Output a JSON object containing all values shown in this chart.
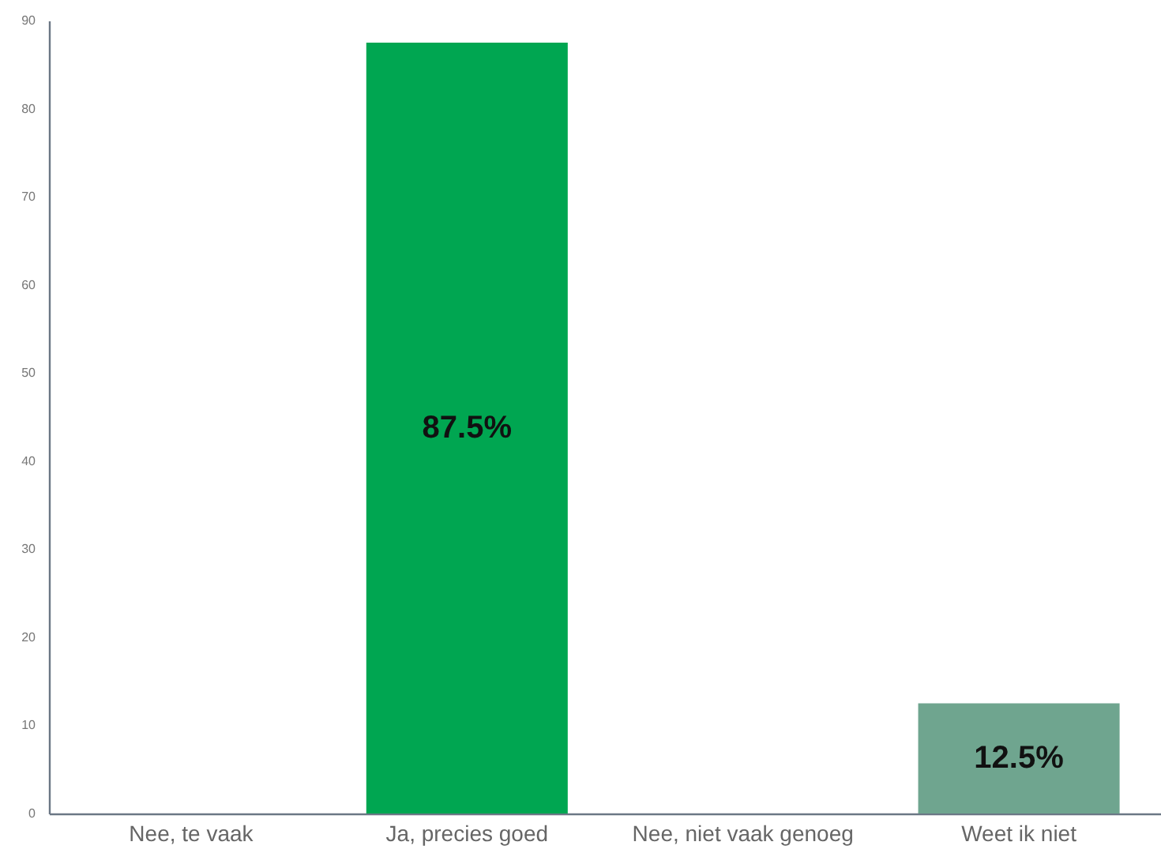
{
  "chart_data": {
    "type": "bar",
    "categories": [
      "Nee, te vaak",
      "Ja, precies goed",
      "Nee, niet vaak genoeg",
      "Weet ik niet"
    ],
    "values": [
      0,
      87.5,
      0,
      12.5
    ],
    "colors": [
      "#00a651",
      "#00a651",
      "#00a651",
      "#6fa58f"
    ],
    "ylim": [
      0,
      90
    ],
    "yticks": [
      0,
      10,
      20,
      30,
      40,
      50,
      60,
      70,
      80,
      90
    ],
    "grid": false,
    "value_labels": [
      null,
      "87.5%",
      null,
      "12.5%"
    ]
  }
}
